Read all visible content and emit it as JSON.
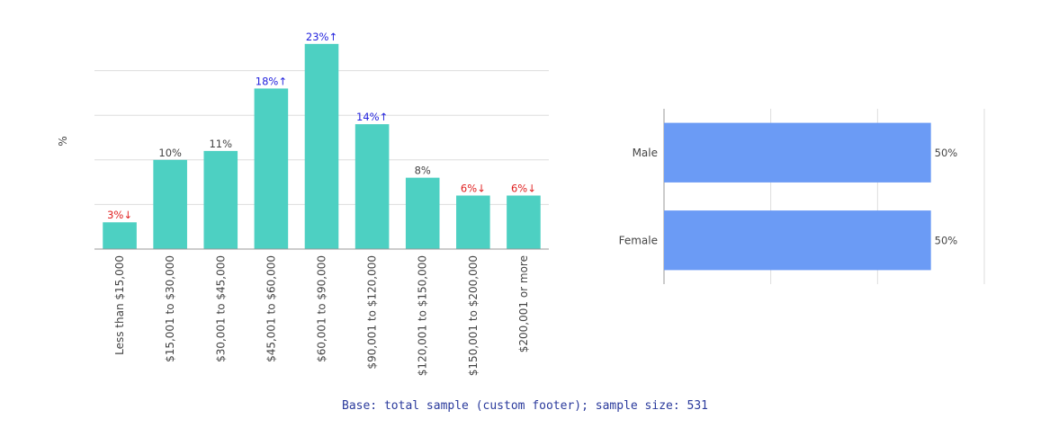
{
  "chart_data": [
    {
      "type": "bar",
      "orientation": "vertical",
      "ylabel": "%",
      "categories": [
        "Less than $15,000",
        "$15,001 to $30,000",
        "$30,001 to $45,000",
        "$45,001 to $60,000",
        "$60,001 to $90,000",
        "$90,001 to $120,000",
        "$120,001 to $150,000",
        "$150,001 to $200,000",
        "$200,001 or more"
      ],
      "values": [
        3,
        10,
        11,
        18,
        23,
        14,
        8,
        6,
        6
      ],
      "data_labels": [
        "3%↓",
        "10%",
        "11%",
        "18%↑",
        "23%↑",
        "14%↑",
        "8%",
        "6%↓",
        "6%↓"
      ],
      "label_status": [
        "low",
        "normal",
        "normal",
        "high",
        "high",
        "high",
        "normal",
        "low",
        "low"
      ],
      "ylim": [
        0,
        25
      ],
      "grid": true,
      "bar_color": "#4dd0c2"
    },
    {
      "type": "bar",
      "orientation": "horizontal",
      "categories": [
        "Male",
        "Female"
      ],
      "values": [
        50,
        50
      ],
      "data_labels": [
        "50%",
        "50%"
      ],
      "xlim": [
        0,
        60
      ],
      "grid": true,
      "bar_color": "#6b9bf5"
    }
  ],
  "colors": {
    "high": "#2222dd",
    "low": "#e02020",
    "normal": "#444444",
    "grid": "#dddddd",
    "axis": "#999999"
  },
  "footer": "Base: total sample (custom footer); sample size: 531"
}
